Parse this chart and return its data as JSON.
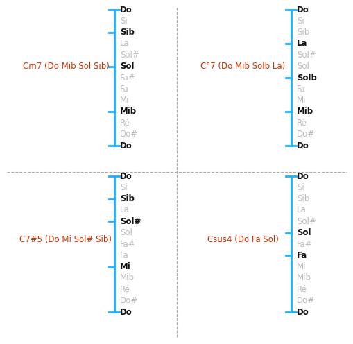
{
  "chord_notes_display": [
    [
      "Do",
      "Si",
      "Sib",
      "La",
      "Sol#",
      "Sol",
      "Fa#",
      "Fa",
      "Mi",
      "Mib",
      "Ré",
      "Do#",
      "Do"
    ],
    [
      "Do",
      "Si",
      "Sib",
      "La",
      "Sol#",
      "Sol",
      "Solb",
      "Fa",
      "Mi",
      "Mib",
      "Ré",
      "Do#",
      "Do"
    ],
    [
      "Do",
      "Si",
      "Sib",
      "La",
      "Sol#",
      "Sol",
      "Fa#",
      "Fa",
      "Mi",
      "Mib",
      "Ré",
      "Do#",
      "Do"
    ],
    [
      "Do",
      "Si",
      "Sib",
      "La",
      "Sol#",
      "Sol",
      "Fa#",
      "Fa",
      "Mi",
      "Mib",
      "Ré",
      "Do#",
      "Do"
    ]
  ],
  "chord_active": [
    [
      "Do",
      "Sib",
      "Sol",
      "Mib"
    ],
    [
      "Do",
      "La",
      "Solb",
      "Mib"
    ],
    [
      "Do",
      "Sib",
      "Sol#",
      "Mi"
    ],
    [
      "Do",
      "Sol",
      "Fa"
    ]
  ],
  "chord_titles": [
    "Cm7 (Do Mib Sol Sib)",
    "C°7 (Do Mib Solb La)",
    "C7#5 (Do Mi Sol# Sib)",
    "Csus4 (Do Fa Sol)"
  ],
  "bracket_color": "#1ab2ff",
  "active_color": "#111111",
  "inactive_color": "#bbbbbb",
  "bg_color": "#ffffff",
  "divider_color": "#aaaaaa",
  "title_color": "#cc3300",
  "note_fontsize": 8.5,
  "title_fontsize": 8.5,
  "fig_width": 5.1,
  "fig_height": 4.96,
  "dpi": 100
}
